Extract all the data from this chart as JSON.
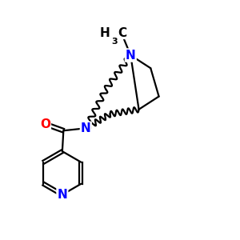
{
  "background": "#ffffff",
  "atom_colors": {
    "N": "#0000ff",
    "O": "#ff0000",
    "C": "#000000"
  },
  "bond_width": 1.6,
  "font_size_atom": 11,
  "font_size_label": 10,
  "xlim": [
    0,
    10
  ],
  "ylim": [
    0,
    10
  ]
}
